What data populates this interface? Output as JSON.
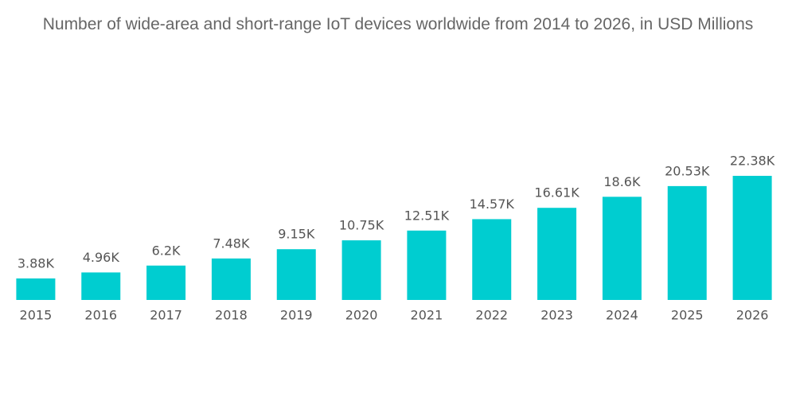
{
  "chart_data": {
    "type": "bar",
    "title": "Number of wide-area and short-range IoT devices worldwide from 2014 to 2026, in USD Millions",
    "categories": [
      "2015",
      "2016",
      "2017",
      "2018",
      "2019",
      "2020",
      "2021",
      "2022",
      "2023",
      "2024",
      "2025",
      "2026"
    ],
    "values": [
      3.88,
      4.96,
      6.2,
      7.48,
      9.15,
      10.75,
      12.51,
      14.57,
      16.61,
      18.6,
      20.53,
      22.38
    ],
    "value_labels": [
      "3.88K",
      "4.96K",
      "6.2K",
      "7.48K",
      "9.15K",
      "10.75K",
      "12.51K",
      "14.57K",
      "16.61K",
      "18.6K",
      "20.53K",
      "22.38K"
    ],
    "color": "#00cdd0"
  }
}
